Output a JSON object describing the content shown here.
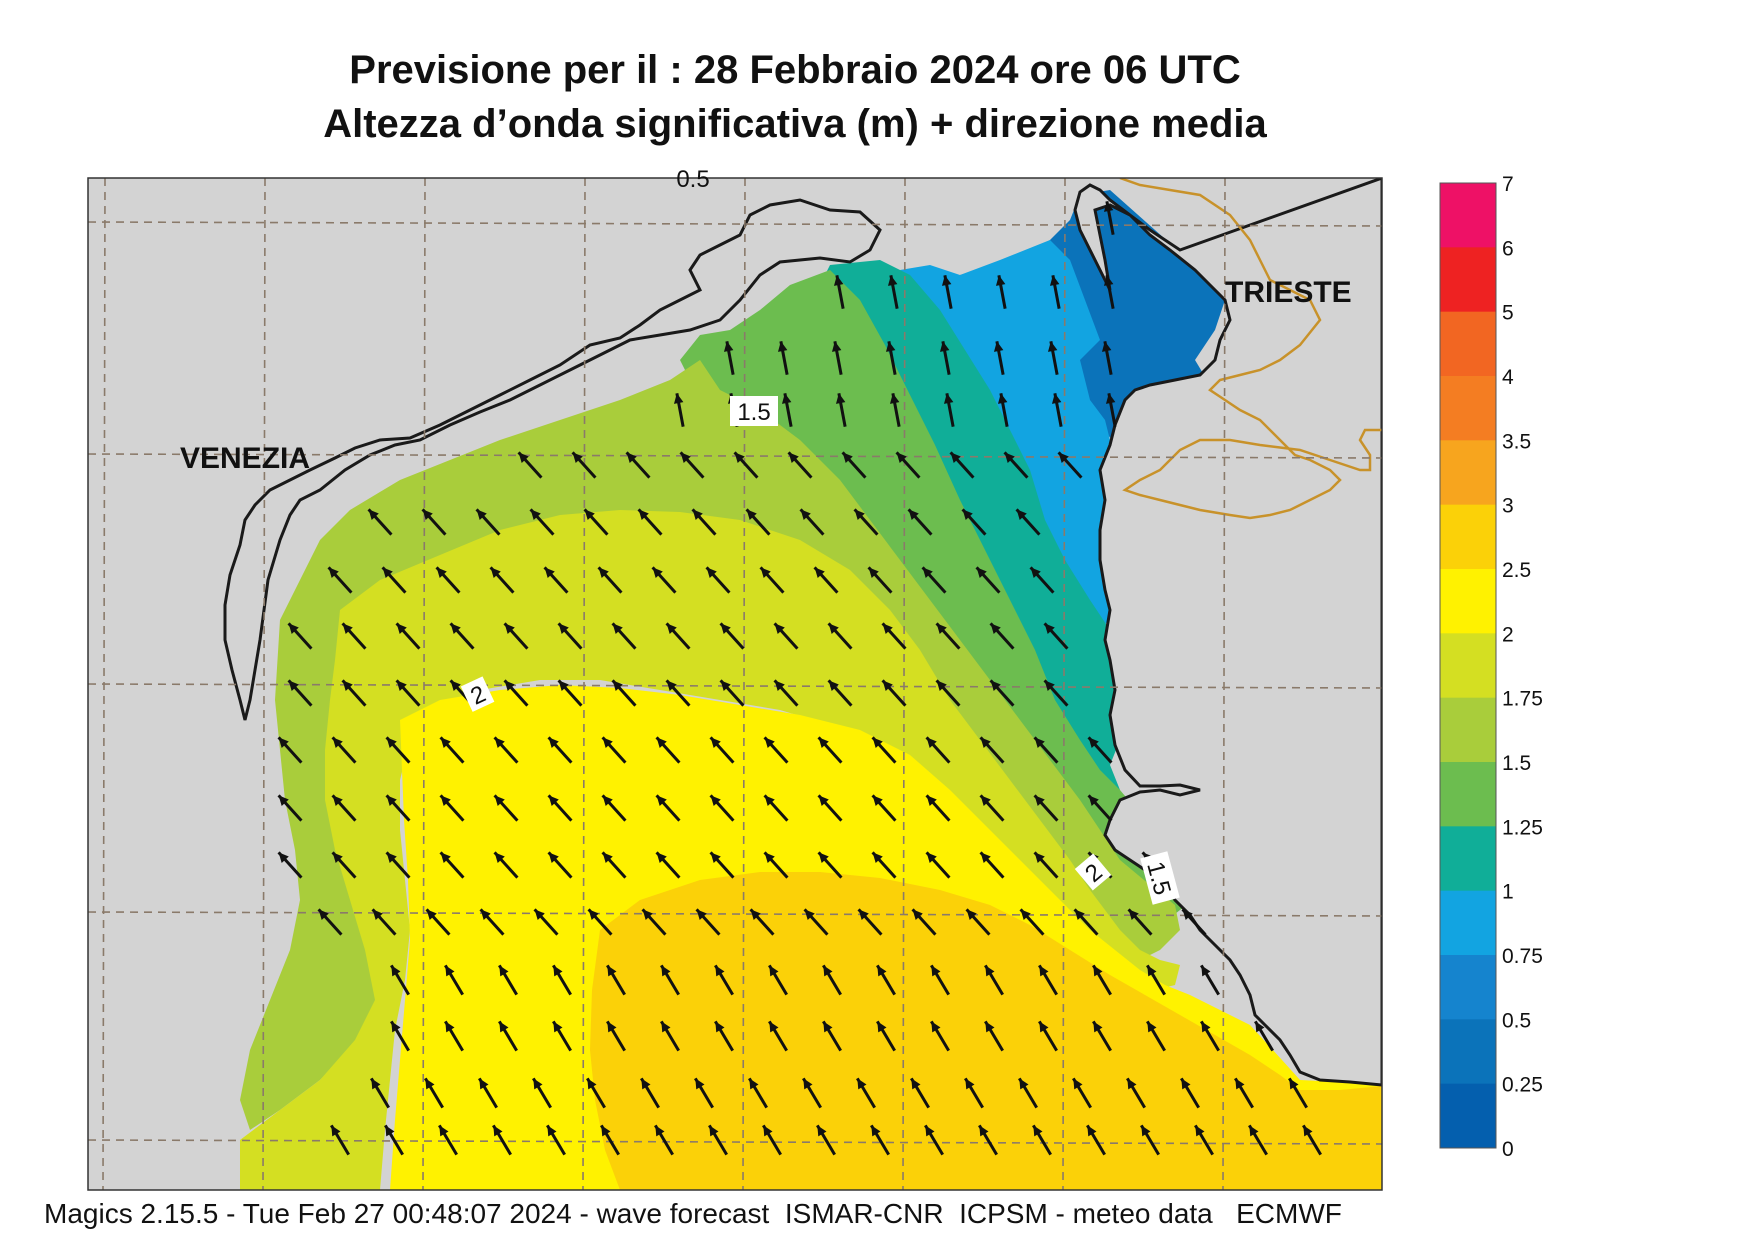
{
  "title": {
    "line1": "Previsione per il  :  28  Febbraio 2024   ore 06 UTC",
    "line2": "Altezza d’onda significativa (m) + direzione media"
  },
  "footer": "Magics 2.15.5 - Tue Feb 27 00:48:07 2024 - wave forecast  ISMAR-CNR  ICPSM - meteo data   ECMWF",
  "places": {
    "venezia": "VENEZIA",
    "trieste": "TRIESTE"
  },
  "contour_labels": [
    "1.5",
    "2",
    "2",
    "1.5",
    "0.5"
  ],
  "wave_direction": "toward north-west",
  "legend": {
    "labels": [
      "7",
      "6",
      "5",
      "4",
      "3.5",
      "3",
      "2.5",
      "2",
      "1.75",
      "1.5",
      "1.25",
      "1",
      "0.75",
      "0.5",
      "0.25",
      "0"
    ],
    "colors": [
      "#ee1166",
      "#ee2222",
      "#f26622",
      "#f47d22",
      "#f7a51e",
      "#fbd108",
      "#fff200",
      "#d4df22",
      "#a9cd3b",
      "#6cbd4f",
      "#10ae98",
      "#12a4e1",
      "#1584ce",
      "#0b73ba",
      "#045fae"
    ]
  },
  "colors": {
    "land": "#d3d3d3",
    "coast": "#1a1a1a",
    "border": "#c8922a",
    "grid": "#8a7a6a"
  }
}
